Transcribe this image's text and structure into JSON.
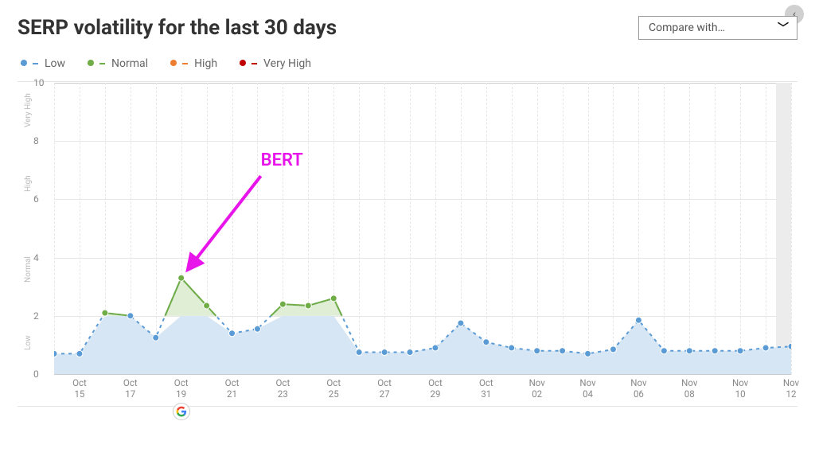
{
  "title": "SERP volatility for the last 30 days",
  "compare": {
    "label": "Compare with…"
  },
  "legend": [
    {
      "name": "Low",
      "color": "#5b9bd5"
    },
    {
      "name": "Normal",
      "color": "#70ad47"
    },
    {
      "name": "High",
      "color": "#ed7d31"
    },
    {
      "name": "Very High",
      "color": "#c00000"
    }
  ],
  "chart": {
    "type": "area-line",
    "ylim": [
      0,
      10
    ],
    "ytick_step": 2,
    "bands": [
      {
        "label": "Low",
        "from": 0,
        "to": 2
      },
      {
        "label": "Normal",
        "from": 2,
        "to": 5
      },
      {
        "label": "High",
        "from": 5,
        "to": 8
      },
      {
        "label": "Very High",
        "from": 8,
        "to": 10
      },
      {
        "label": "",
        "from": 10,
        "to": 10
      }
    ],
    "background_color": "#ffffff",
    "grid_color": "#e6e6e6",
    "vgrid_dashed": true,
    "low_color": "#5b9bd5",
    "low_fill": "#d6e6f4",
    "normal_color": "#70ad47",
    "normal_fill": "#dfeed4",
    "marker_radius": 4,
    "line_width": 2,
    "x_labels_every": 2,
    "shade_last_day": true,
    "data": [
      {
        "month": "Oct",
        "day": 14,
        "value": 0.7
      },
      {
        "month": "Oct",
        "day": 15,
        "value": 0.7
      },
      {
        "month": "Oct",
        "day": 16,
        "value": 2.1
      },
      {
        "month": "Oct",
        "day": 17,
        "value": 2.0
      },
      {
        "month": "Oct",
        "day": 18,
        "value": 1.25
      },
      {
        "month": "Oct",
        "day": 19,
        "value": 3.3,
        "event": "google"
      },
      {
        "month": "Oct",
        "day": 20,
        "value": 2.35
      },
      {
        "month": "Oct",
        "day": 21,
        "value": 1.4
      },
      {
        "month": "Oct",
        "day": 22,
        "value": 1.55
      },
      {
        "month": "Oct",
        "day": 23,
        "value": 2.4
      },
      {
        "month": "Oct",
        "day": 24,
        "value": 2.35
      },
      {
        "month": "Oct",
        "day": 25,
        "value": 2.6
      },
      {
        "month": "Oct",
        "day": 26,
        "value": 0.75
      },
      {
        "month": "Oct",
        "day": 27,
        "value": 0.75
      },
      {
        "month": "Oct",
        "day": 28,
        "value": 0.75
      },
      {
        "month": "Oct",
        "day": 29,
        "value": 0.9
      },
      {
        "month": "Oct",
        "day": 30,
        "value": 1.75
      },
      {
        "month": "Oct",
        "day": 31,
        "value": 1.1
      },
      {
        "month": "Nov",
        "day": 1,
        "value": 0.9
      },
      {
        "month": "Nov",
        "day": 2,
        "value": 0.8
      },
      {
        "month": "Nov",
        "day": 3,
        "value": 0.8
      },
      {
        "month": "Nov",
        "day": 4,
        "value": 0.7
      },
      {
        "month": "Nov",
        "day": 5,
        "value": 0.85
      },
      {
        "month": "Nov",
        "day": 6,
        "value": 1.85
      },
      {
        "month": "Nov",
        "day": 7,
        "value": 0.8
      },
      {
        "month": "Nov",
        "day": 8,
        "value": 0.8
      },
      {
        "month": "Nov",
        "day": 9,
        "value": 0.8
      },
      {
        "month": "Nov",
        "day": 10,
        "value": 0.8
      },
      {
        "month": "Nov",
        "day": 11,
        "value": 0.9
      },
      {
        "month": "Nov",
        "day": 12,
        "value": 0.95
      }
    ],
    "annotation": {
      "text": "BERT",
      "color": "#e815ea",
      "target_index": 5,
      "label_x_offset": 100,
      "label_y_value": 7.3,
      "arrow_start_x_offset": 100,
      "arrow_start_y_value": 6.8,
      "arrow_width": 4
    }
  }
}
